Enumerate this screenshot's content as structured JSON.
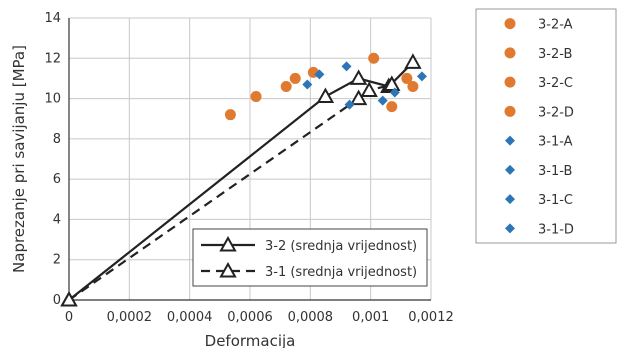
{
  "chart_data": {
    "type": "scatter",
    "title": "",
    "xlabel": "Deformacija",
    "ylabel": "Naprezanje pri savijanju [MPa]",
    "xlim": [
      0,
      0.0012
    ],
    "ylim": [
      0,
      14
    ],
    "x_ticks": [
      "0",
      "0,0002",
      "0,0004",
      "0,0006",
      "0,0008",
      "0,001",
      "0,0012"
    ],
    "y_ticks": [
      "0",
      "2",
      "4",
      "6",
      "8",
      "10",
      "12",
      "14"
    ],
    "grid": true,
    "scatter_series": [
      {
        "name": "3-2-A",
        "marker": "circle",
        "color": "#e07a30",
        "x": [
          0.000535
        ],
        "y": [
          9.2
        ]
      },
      {
        "name": "3-2-B",
        "marker": "circle",
        "color": "#e07a30",
        "x": [
          0.00062,
          0.00075
        ],
        "y": [
          10.1,
          11.0
        ]
      },
      {
        "name": "3-2-C",
        "marker": "circle",
        "color": "#e07a30",
        "x": [
          0.00072,
          0.00081,
          0.00101,
          0.00107
        ],
        "y": [
          10.6,
          11.3,
          12.0,
          9.6
        ]
      },
      {
        "name": "3-2-D",
        "marker": "circle",
        "color": "#e07a30",
        "x": [
          0.00112,
          0.00114
        ],
        "y": [
          11.0,
          10.6
        ]
      },
      {
        "name": "3-1-A",
        "marker": "diamond",
        "color": "#2e75b6",
        "x": [
          0.00093,
          0.00104
        ],
        "y": [
          9.7,
          9.9
        ]
      },
      {
        "name": "3-1-B",
        "marker": "diamond",
        "color": "#2e75b6",
        "x": [
          0.00079,
          0.00083
        ],
        "y": [
          10.7,
          11.2
        ]
      },
      {
        "name": "3-1-C",
        "marker": "diamond",
        "color": "#2e75b6",
        "x": [
          0.00092
        ],
        "y": [
          11.6
        ]
      },
      {
        "name": "3-1-D",
        "marker": "diamond",
        "color": "#2e75b6",
        "x": [
          0.00108,
          0.00117
        ],
        "y": [
          10.3,
          11.1
        ]
      }
    ],
    "line_series": [
      {
        "name": "3-2 (srednja vrijednost)",
        "style": "solid",
        "color": "#222222",
        "x": [
          0,
          0.00085,
          0.00096,
          0.00106,
          0.00114
        ],
        "y": [
          0,
          10.1,
          11.0,
          10.6,
          11.8
        ]
      },
      {
        "name": "3-1 (srednja vrijednost)",
        "style": "dashed",
        "color": "#222222",
        "x": [
          0,
          0.00096,
          0.000995,
          0.00107
        ],
        "y": [
          0,
          10.0,
          10.4,
          10.7
        ]
      }
    ],
    "legend_inside": "bottom-right",
    "legend_outside": "right"
  }
}
